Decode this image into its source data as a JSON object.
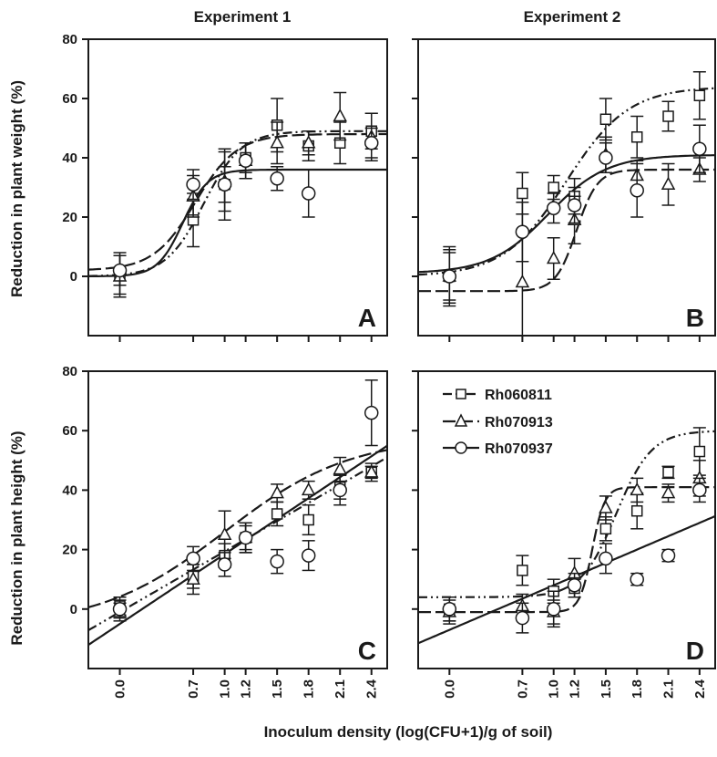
{
  "column_titles": [
    "Experiment 1",
    "Experiment 2"
  ],
  "ylabel_top": "Reduction in plant weight (%)",
  "ylabel_bottom": "Reduction in plant height (%)",
  "xlabel": "Inoculum density (log(CFU+1)/g of soil)",
  "panel_letters": [
    "A",
    "B",
    "C",
    "D"
  ],
  "legend": {
    "items": [
      {
        "label": "Rh060811",
        "marker": "square",
        "dash": "dash-dot-dot"
      },
      {
        "label": "Rh070913",
        "marker": "triangle",
        "dash": "long-dash"
      },
      {
        "label": "Rh070937",
        "marker": "circle",
        "dash": "solid"
      }
    ]
  },
  "chart_data": {
    "type": "scatter",
    "x_ticks": [
      0.0,
      0.7,
      1.0,
      1.2,
      1.5,
      1.8,
      2.1,
      2.4
    ],
    "x_tick_labels": [
      "0.0",
      "0.7",
      "1.0",
      "1.2",
      "1.5",
      "1.8",
      "2.1",
      "2.4"
    ],
    "xlim": [
      -0.3,
      2.55
    ],
    "ylim": [
      -20,
      80
    ],
    "y_ticks": [
      0,
      20,
      40,
      60,
      80
    ],
    "series_names": [
      "Rh060811",
      "Rh070913",
      "Rh070937"
    ],
    "panels": [
      {
        "letter": "A",
        "series": [
          {
            "name": "Rh060811",
            "marker": "square",
            "points": [
              [
                0.0,
                1,
                7
              ],
              [
                0.7,
                19,
                9
              ],
              [
                1.0,
                31,
                6
              ],
              [
                1.2,
                40,
                5
              ],
              [
                1.5,
                51,
                9
              ],
              [
                1.8,
                44,
                5
              ],
              [
                2.1,
                45,
                7
              ],
              [
                2.4,
                49,
                6
              ]
            ],
            "curve": {
              "type": "sigmoid",
              "min": 0,
              "max": 49,
              "x50": 0.8,
              "slope": 0.18
            }
          },
          {
            "name": "Rh070913",
            "marker": "triangle",
            "points": [
              [
                0.0,
                0,
                7
              ],
              [
                0.7,
                27,
                7
              ],
              [
                1.0,
                32,
                10
              ],
              [
                1.2,
                39,
                6
              ],
              [
                1.5,
                45,
                7
              ],
              [
                1.8,
                45,
                4
              ],
              [
                2.1,
                54,
                8
              ],
              [
                2.4,
                47,
                8
              ]
            ],
            "curve": {
              "type": "sigmoid",
              "min": 2,
              "max": 48,
              "x50": 0.72,
              "slope": 0.2
            }
          },
          {
            "name": "Rh070937",
            "marker": "circle",
            "points": [
              [
                0.0,
                2,
                5
              ],
              [
                0.7,
                31,
                5
              ],
              [
                1.0,
                31,
                12
              ],
              [
                1.2,
                39,
                6
              ],
              [
                1.5,
                33,
                4
              ],
              [
                1.8,
                28,
                8
              ],
              [
                2.4,
                45,
                5
              ]
            ],
            "curve": {
              "type": "sigmoid",
              "min": 0,
              "max": 36,
              "x50": 0.6,
              "slope": 0.12
            }
          }
        ]
      },
      {
        "letter": "B",
        "series": [
          {
            "name": "Rh060811",
            "marker": "square",
            "points": [
              [
                0.0,
                0,
                9
              ],
              [
                0.7,
                28,
                7
              ],
              [
                1.0,
                30,
                4
              ],
              [
                1.2,
                27,
                6
              ],
              [
                1.5,
                53,
                7
              ],
              [
                1.8,
                47,
                7
              ],
              [
                2.1,
                54,
                5
              ],
              [
                2.4,
                61,
                8
              ]
            ],
            "curve": {
              "type": "sigmoid",
              "min": 0,
              "max": 64,
              "x50": 1.12,
              "slope": 0.3
            }
          },
          {
            "name": "Rh070913",
            "marker": "triangle",
            "points": [
              [
                0.0,
                0,
                8
              ],
              [
                0.7,
                -2,
                23
              ],
              [
                1.0,
                6,
                7
              ],
              [
                1.2,
                19,
                8
              ],
              [
                1.5,
                41,
                6
              ],
              [
                1.8,
                34,
                5
              ],
              [
                2.1,
                31,
                7
              ],
              [
                2.4,
                36,
                4
              ]
            ],
            "curve": {
              "type": "sigmoid",
              "min": -5,
              "max": 36,
              "x50": 1.22,
              "slope": 0.1
            }
          },
          {
            "name": "Rh070937",
            "marker": "circle",
            "points": [
              [
                0.0,
                0,
                10
              ],
              [
                0.7,
                15,
                10
              ],
              [
                1.0,
                23,
                5
              ],
              [
                1.2,
                24,
                6
              ],
              [
                1.5,
                40,
                5
              ],
              [
                1.8,
                29,
                9
              ],
              [
                2.4,
                43,
                8
              ]
            ],
            "curve": {
              "type": "sigmoid",
              "min": 1,
              "max": 41,
              "x50": 0.95,
              "slope": 0.28
            }
          }
        ]
      },
      {
        "letter": "C",
        "series": [
          {
            "name": "Rh060811",
            "marker": "square",
            "points": [
              [
                0.0,
                1,
                3
              ],
              [
                0.7,
                11,
                4
              ],
              [
                1.0,
                18,
                4
              ],
              [
                1.2,
                24,
                4
              ],
              [
                1.5,
                32,
                4
              ],
              [
                1.8,
                30,
                5
              ],
              [
                2.1,
                41,
                4
              ],
              [
                2.4,
                46,
                2
              ]
            ],
            "curve": {
              "type": "linear",
              "intercept": -1,
              "slope": 20.4
            }
          },
          {
            "name": "Rh070913",
            "marker": "triangle",
            "points": [
              [
                0.0,
                -1,
                3
              ],
              [
                0.7,
                10,
                5
              ],
              [
                1.0,
                25,
                8
              ],
              [
                1.2,
                24,
                5
              ],
              [
                1.5,
                39,
                3
              ],
              [
                1.8,
                40,
                3
              ],
              [
                2.1,
                47,
                4
              ],
              [
                2.4,
                46,
                3
              ]
            ],
            "curve": {
              "type": "sigmoid",
              "min": -6,
              "max": 58,
              "x50": 1.0,
              "slope": 0.6
            }
          },
          {
            "name": "Rh070937",
            "marker": "circle",
            "points": [
              [
                0.0,
                0,
                3
              ],
              [
                0.7,
                17,
                4
              ],
              [
                1.0,
                15,
                4
              ],
              [
                1.2,
                24,
                5
              ],
              [
                1.5,
                16,
                4
              ],
              [
                1.8,
                18,
                5
              ],
              [
                2.1,
                40,
                5
              ],
              [
                2.4,
                66,
                11
              ]
            ],
            "curve": {
              "type": "linear",
              "intercept": -5,
              "slope": 23.5
            }
          }
        ]
      },
      {
        "letter": "D",
        "series": [
          {
            "name": "Rh060811",
            "marker": "square",
            "points": [
              [
                0.0,
                0,
                4
              ],
              [
                0.7,
                13,
                5
              ],
              [
                1.0,
                6,
                4
              ],
              [
                1.2,
                7,
                3
              ],
              [
                1.5,
                27,
                4
              ],
              [
                1.8,
                33,
                6
              ],
              [
                2.1,
                46,
                2
              ],
              [
                2.4,
                53,
                8
              ]
            ],
            "curve": {
              "type": "sigmoid",
              "min": 4,
              "max": 60,
              "x50": 1.6,
              "slope": 0.17
            }
          },
          {
            "name": "Rh070913",
            "marker": "triangle",
            "points": [
              [
                0.0,
                -1,
                4
              ],
              [
                0.7,
                1,
                4
              ],
              [
                1.0,
                -1,
                4
              ],
              [
                1.2,
                12,
                5
              ],
              [
                1.5,
                34,
                4
              ],
              [
                1.8,
                40,
                4
              ],
              [
                2.1,
                39,
                3
              ],
              [
                2.4,
                44,
                6
              ]
            ],
            "curve": {
              "type": "sigmoid",
              "min": -1,
              "max": 41,
              "x50": 1.37,
              "slope": 0.06
            }
          },
          {
            "name": "Rh070937",
            "marker": "circle",
            "points": [
              [
                0.0,
                0,
                4
              ],
              [
                0.7,
                -3,
                5
              ],
              [
                1.0,
                0,
                6
              ],
              [
                1.2,
                8,
                4
              ],
              [
                1.5,
                17,
                5
              ],
              [
                1.8,
                10,
                2
              ],
              [
                2.1,
                18,
                2
              ],
              [
                2.4,
                40,
                4
              ]
            ],
            "curve": {
              "type": "linear",
              "intercept": -7,
              "slope": 15.0
            }
          }
        ]
      }
    ]
  }
}
